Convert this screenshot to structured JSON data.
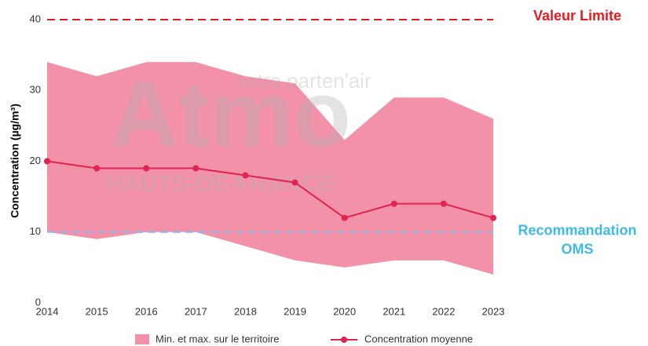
{
  "chart_data": {
    "type": "line",
    "y_label": "Concentration (µg/m³)",
    "x": [
      2014,
      2015,
      2016,
      2017,
      2018,
      2019,
      2020,
      2021,
      2022,
      2023
    ],
    "xlim": [
      2014,
      2023
    ],
    "xticks": [
      2014,
      2015,
      2016,
      2017,
      2018,
      2019,
      2020,
      2021,
      2022,
      2023
    ],
    "ylim": [
      0,
      40
    ],
    "yticks": [
      0,
      10,
      20,
      30,
      40
    ],
    "series": [
      {
        "name": "Min. et max. sur le territoire",
        "color": "#f291a8",
        "high": [
          34,
          32,
          34,
          34,
          32,
          31,
          23,
          29,
          29,
          26
        ],
        "low": [
          10,
          9,
          10,
          10,
          8,
          6,
          5,
          6,
          6,
          4
        ]
      },
      {
        "name": "Concentration moyenne",
        "color": "#e0234f",
        "values": [
          20,
          19,
          19,
          19,
          18,
          17,
          12,
          14,
          14,
          12
        ]
      }
    ],
    "reference_lines": [
      {
        "value": 40,
        "label": [
          "Valeur Limite"
        ],
        "color": "#e8191f",
        "label_color": "#e8191f"
      },
      {
        "value": 10,
        "label": [
          "Recommandation",
          "OMS"
        ],
        "color": "#8ab8f0",
        "label_color": "#3dbbe8"
      }
    ],
    "watermark": {
      "brand": "Atmo",
      "region": "HAUTS-DE-FRANCE",
      "tagline": "votre parten'air"
    }
  }
}
